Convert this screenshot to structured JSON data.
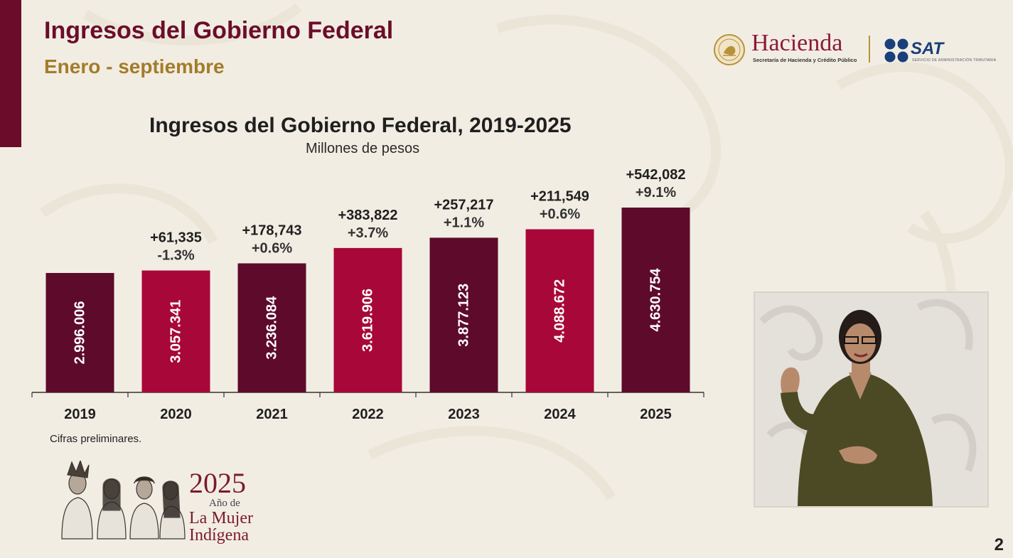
{
  "header": {
    "title": "Ingresos del Gobierno Federal",
    "subtitle": "Enero - septiembre"
  },
  "logos": {
    "hacienda": "Hacienda",
    "hacienda_sub": "Secretaría de Hacienda y Crédito Público",
    "sat": "SAT",
    "sat_sub": "SERVICIO DE ADMINISTRACIÓN TRIBUTARIA"
  },
  "chart_data": {
    "type": "bar",
    "title": "Ingresos del Gobierno Federal, 2019-2025",
    "subtitle": "Millones de pesos",
    "categories": [
      "2019",
      "2020",
      "2021",
      "2022",
      "2023",
      "2024",
      "2025"
    ],
    "values": [
      2996006,
      3057341,
      3236084,
      3619906,
      3877123,
      4088672,
      4630754
    ],
    "value_labels": [
      "2.996.006",
      "3.057.341",
      "3.236.084",
      "3.619.906",
      "3.877.123",
      "4.088.672",
      "4.630.754"
    ],
    "change_abs": [
      "",
      "+61,335",
      "+178,743",
      "+383,822",
      "+257,217",
      "+211,549",
      "+542,082"
    ],
    "change_pct": [
      "",
      "-1.3%",
      "+0.6%",
      "+3.7%",
      "+1.1%",
      "+0.6%",
      "+9.1%"
    ],
    "bar_colors": [
      "#5e0a2b",
      "#a8073a",
      "#5e0a2b",
      "#a8073a",
      "#5e0a2b",
      "#a8073a",
      "#5e0a2b"
    ],
    "ylim": [
      0,
      4630754
    ],
    "grid": false,
    "xlabel": "",
    "ylabel": ""
  },
  "footnote": "Cifras preliminares.",
  "year_logo": {
    "year": "2025",
    "line1": "Año de",
    "line2": "La Mujer",
    "line3": "Indígena"
  },
  "page_number": "2"
}
